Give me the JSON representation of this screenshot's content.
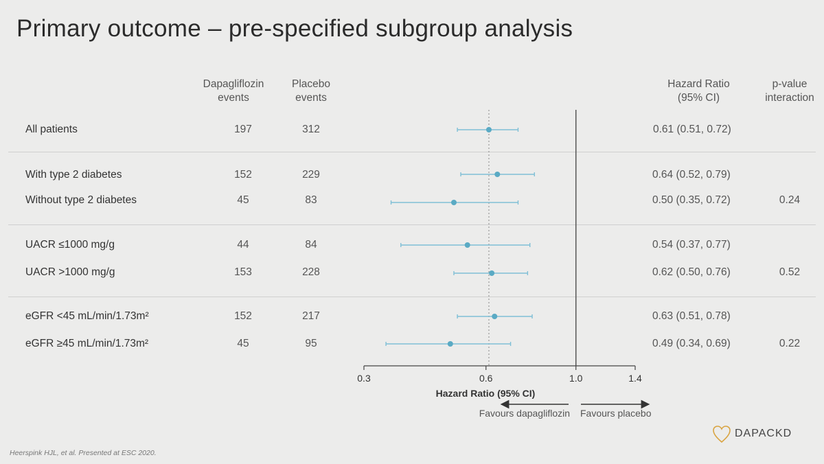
{
  "title": "Primary outcome – pre-specified subgroup analysis",
  "headers": {
    "dapa": [
      "Dapagliflozin",
      "events"
    ],
    "placebo": [
      "Placebo",
      "events"
    ],
    "hr": [
      "Hazard Ratio",
      "(95% CI)"
    ],
    "pvalue": [
      "p-value",
      "interaction"
    ]
  },
  "rows": [
    {
      "label": "All patients",
      "dapa": "197",
      "placebo": "312",
      "hr_text": "0.61 (0.51, 0.72)",
      "p": ""
    },
    {
      "label": "With type 2 diabetes",
      "dapa": "152",
      "placebo": "229",
      "hr_text": "0.64 (0.52, 0.79)",
      "p": ""
    },
    {
      "label": "Without type 2 diabetes",
      "dapa": "45",
      "placebo": "83",
      "hr_text": "0.50 (0.35, 0.72)",
      "p": "0.24"
    },
    {
      "label": "UACR ≤1000 mg/g",
      "dapa": "44",
      "placebo": "84",
      "hr_text": "0.54 (0.37, 0.77)",
      "p": ""
    },
    {
      "label": "UACR >1000 mg/g",
      "dapa": "153",
      "placebo": "228",
      "hr_text": "0.62 (0.50, 0.76)",
      "p": "0.52"
    },
    {
      "label": "eGFR <45 mL/min/1.73m²",
      "dapa": "152",
      "placebo": "217",
      "hr_text": "0.63 (0.51, 0.78)",
      "p": ""
    },
    {
      "label": "eGFR ≥45 mL/min/1.73m²",
      "dapa": "45",
      "placebo": "95",
      "hr_text": "0.49 (0.34, 0.69)",
      "p": "0.22"
    }
  ],
  "chart_data": {
    "type": "forest",
    "scale": "log",
    "xlim": [
      0.3,
      1.4
    ],
    "xticks": [
      0.3,
      0.6,
      1.0,
      1.4
    ],
    "tick_labels": [
      "0.3",
      "0.6",
      "1.0",
      "1.4"
    ],
    "xlabel": "Hazard Ratio (95% CI)",
    "reference_line": 1.0,
    "overall_line": 0.61,
    "series": [
      {
        "name": "All patients",
        "hr": 0.61,
        "lo": 0.51,
        "hi": 0.72
      },
      {
        "name": "With type 2 diabetes",
        "hr": 0.64,
        "lo": 0.52,
        "hi": 0.79
      },
      {
        "name": "Without type 2 diabetes",
        "hr": 0.5,
        "lo": 0.35,
        "hi": 0.72
      },
      {
        "name": "UACR ≤1000 mg/g",
        "hr": 0.54,
        "lo": 0.37,
        "hi": 0.77
      },
      {
        "name": "UACR >1000 mg/g",
        "hr": 0.62,
        "lo": 0.5,
        "hi": 0.76
      },
      {
        "name": "eGFR <45 mL/min/1.73m²",
        "hr": 0.63,
        "lo": 0.51,
        "hi": 0.78
      },
      {
        "name": "eGFR ≥45 mL/min/1.73m²",
        "hr": 0.49,
        "lo": 0.34,
        "hi": 0.69
      }
    ],
    "favours_left": "Favours dapagliflozin",
    "favours_right": "Favours placebo"
  },
  "colors": {
    "point": "#5aaac4",
    "ci": "#7fbfd6",
    "axis": "#444444",
    "ref": "#555555"
  },
  "footnote": "Heerspink HJL, et al. Presented at ESC 2020.",
  "logo": {
    "text": "DAPACKD",
    "icon": "heart-outline-icon"
  }
}
